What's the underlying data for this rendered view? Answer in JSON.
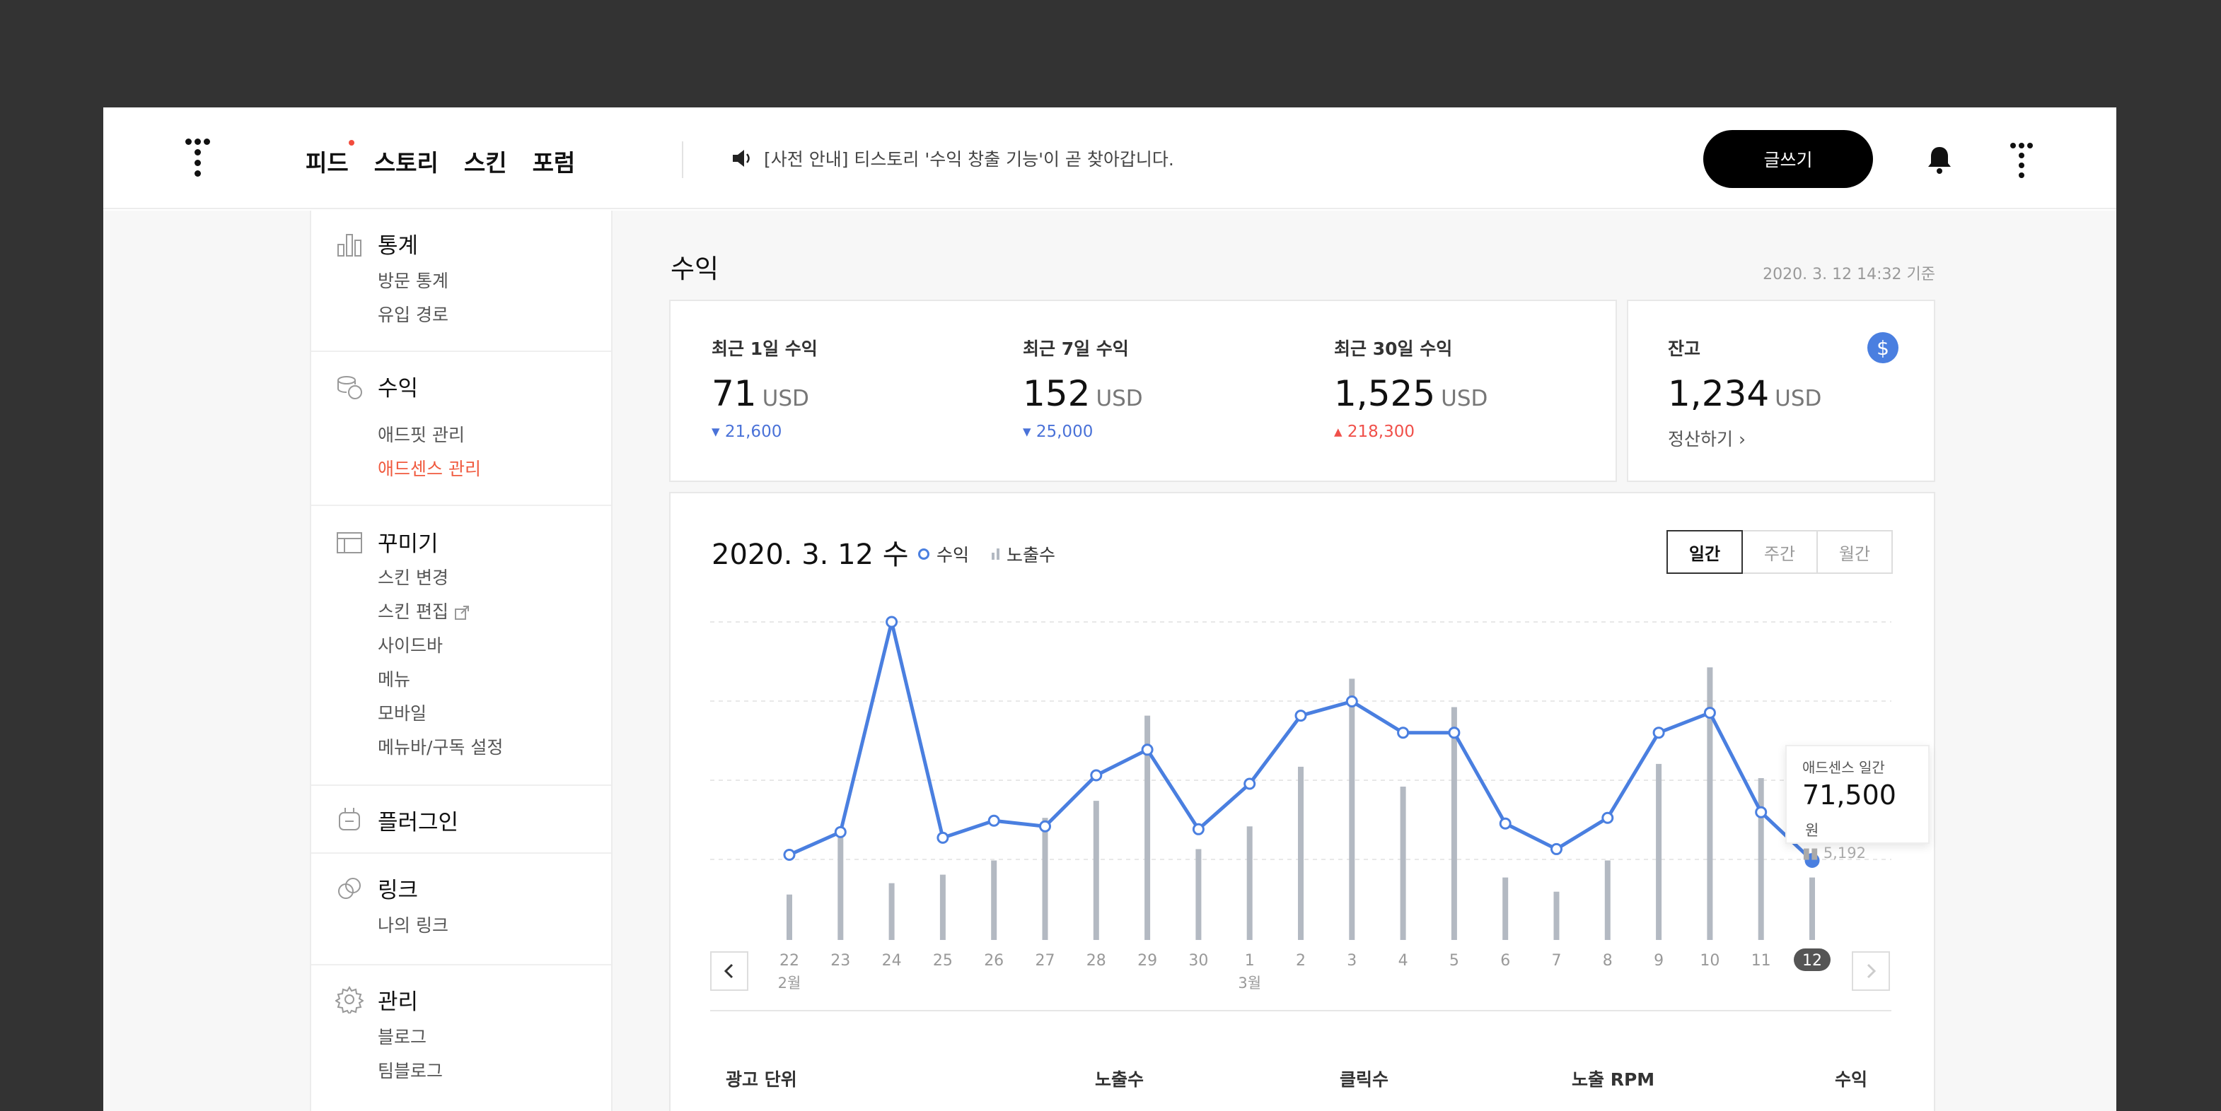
{
  "header": {
    "nav": [
      "피드",
      "스토리",
      "스킨",
      "포럼"
    ],
    "notice": "[사전 안내] 티스토리 '수익 창출 기능'이 곧 찾아갑니다.",
    "write_label": "글쓰기"
  },
  "sidebar": {
    "groups": [
      {
        "title": "통계",
        "icon": "bar-chart-icon",
        "items": [
          "방문 통계",
          "유입 경로"
        ]
      },
      {
        "title": "수익",
        "icon": "coins-icon",
        "items": [
          "애드핏 관리",
          "애드센스 관리"
        ],
        "active_item": "애드센스 관리"
      },
      {
        "title": "꾸미기",
        "icon": "layout-icon",
        "items": [
          "스킨 변경",
          "스킨 편집",
          "사이드바",
          "메뉴",
          "모바일",
          "메뉴바/구독 설정"
        ]
      },
      {
        "title": "플러그인",
        "icon": "plug-icon",
        "items": []
      },
      {
        "title": "링크",
        "icon": "link-icon",
        "items": [
          "나의 링크"
        ]
      },
      {
        "title": "관리",
        "icon": "gear-icon",
        "items": [
          "블로그",
          "팀블로그"
        ]
      }
    ]
  },
  "main": {
    "title": "수익",
    "updated": "2020. 3. 12 14:32 기준",
    "stats": [
      {
        "label": "최근 1일 수익",
        "value": "71",
        "unit": "USD",
        "change": "21,600",
        "direction": "down"
      },
      {
        "label": "최근 7일 수익",
        "value": "152",
        "unit": "USD",
        "change": "25,000",
        "direction": "down"
      },
      {
        "label": "최근 30일 수익",
        "value": "1,525",
        "unit": "USD",
        "change": "218,300",
        "direction": "up"
      }
    ],
    "balance": {
      "label": "잔고",
      "value": "1,234",
      "unit": "USD",
      "action": "정산하기",
      "icon": "dollar-icon"
    },
    "chart_header": {
      "date": "2020. 3. 12 수",
      "legend": [
        "수익",
        "노출수"
      ],
      "periods": [
        "일간",
        "주간",
        "월간"
      ],
      "active_period": "일간"
    },
    "tooltip": {
      "title": "애드센스 일간",
      "value": "71,500",
      "unit": "원",
      "sub": "5,192"
    },
    "table_headers": [
      "광고 단위",
      "노출수",
      "클릭수",
      "노출 RPM",
      "수익"
    ]
  },
  "colors": {
    "accent_line": "#4a7fe0",
    "bar": "#b3b9c2",
    "active_menu": "#f05a3f",
    "down": "#4a72d8",
    "up": "#f0504a"
  },
  "chart_data": {
    "type": "line",
    "x": [
      "22",
      "23",
      "24",
      "25",
      "26",
      "27",
      "28",
      "29",
      "30",
      "1",
      "2",
      "3",
      "4",
      "5",
      "6",
      "7",
      "8",
      "9",
      "10",
      "11",
      "12"
    ],
    "month_labels": [
      {
        "index": 0,
        "label": "2월"
      },
      {
        "index": 9,
        "label": "3월"
      }
    ],
    "selected_index": 20,
    "series": [
      {
        "name": "수익",
        "type": "line",
        "values": [
          30,
          38,
          112,
          36,
          42,
          40,
          58,
          67,
          39,
          55,
          79,
          84,
          73,
          73,
          41,
          32,
          43,
          73,
          80,
          45,
          28
        ]
      },
      {
        "name": "노출수",
        "type": "bar",
        "values": [
          16,
          36,
          20,
          23,
          28,
          43,
          49,
          79,
          32,
          40,
          61,
          92,
          54,
          82,
          22,
          17,
          28,
          62,
          96,
          57,
          22
        ]
      }
    ],
    "ylim": [
      0,
      112
    ],
    "grid": true
  }
}
